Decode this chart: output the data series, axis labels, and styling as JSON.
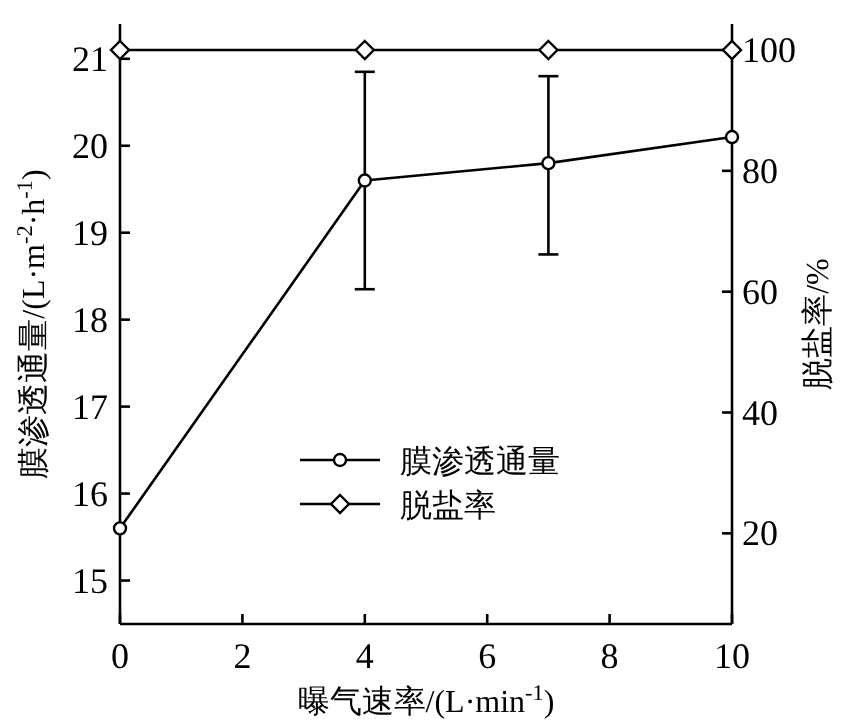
{
  "chart_data": {
    "type": "line",
    "xlabel": "曝气速率/(L·min$^{-1}$)",
    "ylabel": "膜渗透通量/(L·m$^{-2}$·h$^{-1}$)",
    "y2label": "脱盐率/%",
    "x": [
      0,
      4,
      7,
      10
    ],
    "series": [
      {
        "name": "膜渗透通量",
        "color": "#000000",
        "marker": "circle",
        "values": [
          15.6,
          19.6,
          19.8,
          20.1
        ],
        "errors": [
          null,
          [
            18.35,
            20.85
          ],
          [
            18.75,
            20.8
          ],
          null
        ]
      },
      {
        "name": "脱盐率",
        "color": "#000000",
        "marker": "diamond",
        "axis": "y2",
        "values": [
          100,
          100,
          100,
          100
        ]
      }
    ],
    "xlim": [
      0,
      10
    ],
    "xticks": [
      0,
      2,
      4,
      6,
      8,
      10
    ],
    "ylim": [
      14.5,
      21.4
    ],
    "yticks": [
      15,
      16,
      17,
      18,
      19,
      20,
      21
    ],
    "y2lim": [
      5,
      104.3
    ],
    "y2ticks": [
      20,
      40,
      60,
      80,
      100
    ],
    "legend": "bottom",
    "grid": false
  }
}
